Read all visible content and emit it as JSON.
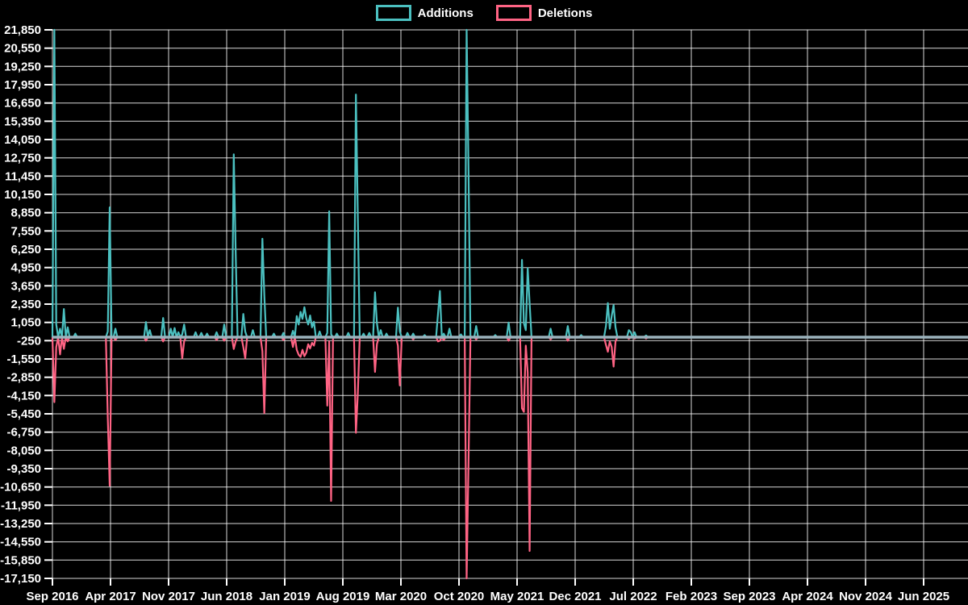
{
  "chart_data": {
    "type": "line",
    "title": "",
    "legend": [
      {
        "label": "Additions",
        "color": "#4bc0c0"
      },
      {
        "label": "Deletions",
        "color": "#ff6384"
      }
    ],
    "background": "#000000",
    "grid_color": "rgba(255,255,255,0.85)",
    "tick_text_color": "#ffffff",
    "zero_line_color": "#9cb3bd",
    "y_axis": {
      "max": 21850,
      "min": -17150,
      "step": 1300
    },
    "x_tick_labels": [
      "Sep 2016",
      "Apr 2017",
      "Nov 2017",
      "Jun 2018",
      "Jan 2019",
      "Aug 2019",
      "Mar 2020",
      "Oct 2020",
      "May 2021",
      "Dec 2021",
      "Jul 2022",
      "Feb 2023",
      "Sep 2023",
      "Apr 2024",
      "Nov 2024",
      "Jun 2025"
    ],
    "x_axis": {
      "unit": "weeks since Sep 2016",
      "weeks_per_tick": 30.4286,
      "total_weeks": 480
    },
    "clipping_note": "Spikes at 21850 and -17150 are clipped at the axis limits",
    "series_sparse": {
      "format": "[week_index, additions, deletions]; unlisted weeks are 0,0",
      "points": [
        [
          1,
          21850,
          -4620
        ],
        [
          2,
          900,
          -700
        ],
        [
          4,
          600,
          -1230
        ],
        [
          6,
          2000,
          -830
        ],
        [
          8,
          700,
          -300
        ],
        [
          12,
          250,
          0
        ],
        [
          29,
          400,
          -5730
        ],
        [
          30,
          9225,
          -10560
        ],
        [
          33,
          600,
          -200
        ],
        [
          49,
          1075,
          -250
        ],
        [
          51,
          500,
          0
        ],
        [
          58,
          1360,
          -300
        ],
        [
          62,
          600,
          0
        ],
        [
          64,
          650,
          0
        ],
        [
          66,
          350,
          0
        ],
        [
          68,
          200,
          -1510
        ],
        [
          69,
          900,
          -300
        ],
        [
          75,
          350,
          0
        ],
        [
          78,
          300,
          0
        ],
        [
          81,
          250,
          0
        ],
        [
          86,
          350,
          -200
        ],
        [
          90,
          900,
          -250
        ],
        [
          95,
          13000,
          -840
        ],
        [
          96,
          6050,
          -300
        ],
        [
          100,
          1650,
          -700
        ],
        [
          101,
          400,
          -1500
        ],
        [
          105,
          500,
          0
        ],
        [
          110,
          7000,
          -1000
        ],
        [
          111,
          3000,
          -5400
        ],
        [
          116,
          250,
          0
        ],
        [
          121,
          300,
          -200
        ],
        [
          126,
          450,
          -700
        ],
        [
          128,
          1500,
          -900
        ],
        [
          129,
          900,
          -1250
        ],
        [
          130,
          1800,
          -1400
        ],
        [
          131,
          1300,
          -900
        ],
        [
          132,
          2130,
          -1350
        ],
        [
          133,
          1340,
          -1100
        ],
        [
          134,
          900,
          -500
        ],
        [
          135,
          1540,
          -800
        ],
        [
          136,
          700,
          -400
        ],
        [
          137,
          1100,
          -600
        ],
        [
          140,
          400,
          0
        ],
        [
          144,
          300,
          -4870
        ],
        [
          145,
          8950,
          -300
        ],
        [
          146,
          200,
          -11640
        ],
        [
          149,
          250,
          0
        ],
        [
          155,
          300,
          0
        ],
        [
          159,
          17250,
          -6800
        ],
        [
          160,
          8550,
          -4000
        ],
        [
          163,
          250,
          0
        ],
        [
          166,
          300,
          0
        ],
        [
          169,
          3190,
          -2470
        ],
        [
          170,
          1000,
          -500
        ],
        [
          172,
          500,
          0
        ],
        [
          175,
          250,
          0
        ],
        [
          181,
          2100,
          -600
        ],
        [
          182,
          400,
          -3430
        ],
        [
          186,
          300,
          0
        ],
        [
          189,
          250,
          -150
        ],
        [
          195,
          150,
          0
        ],
        [
          202,
          1650,
          -300
        ],
        [
          203,
          3280,
          -250
        ],
        [
          205,
          250,
          -200
        ],
        [
          208,
          600,
          0
        ],
        [
          214,
          200,
          0
        ],
        [
          217,
          21850,
          -17150
        ],
        [
          218,
          11800,
          -8800
        ],
        [
          222,
          790,
          -150
        ],
        [
          232,
          150,
          0
        ],
        [
          239,
          1040,
          -250
        ],
        [
          246,
          5490,
          -5060
        ],
        [
          247,
          1000,
          -5310
        ],
        [
          248,
          500,
          -600
        ],
        [
          249,
          4910,
          -2500
        ],
        [
          250,
          2400,
          -15200
        ],
        [
          261,
          600,
          -150
        ],
        [
          270,
          790,
          -250
        ],
        [
          277,
          150,
          0
        ],
        [
          290,
          800,
          -550
        ],
        [
          291,
          2420,
          -1035
        ],
        [
          292,
          600,
          -300
        ],
        [
          293,
          1500,
          -700
        ],
        [
          294,
          2280,
          -2090
        ],
        [
          295,
          700,
          -300
        ],
        [
          302,
          500,
          -120
        ],
        [
          303,
          350,
          0
        ],
        [
          305,
          350,
          -100
        ],
        [
          311,
          120,
          -100
        ],
        [
          480,
          0,
          0
        ]
      ]
    }
  }
}
